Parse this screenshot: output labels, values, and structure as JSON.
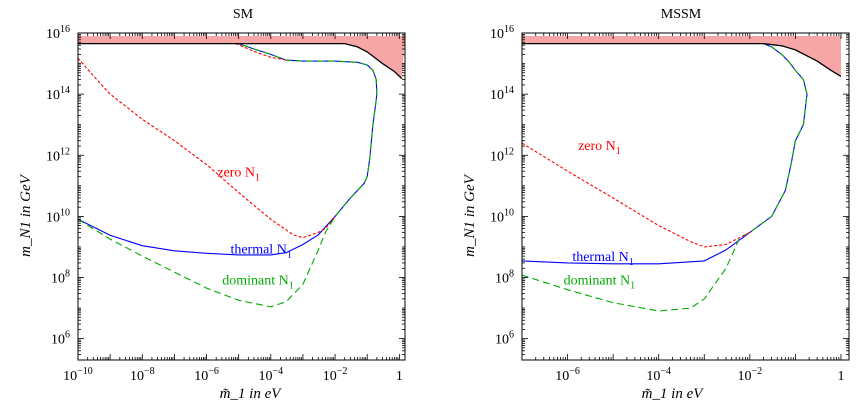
{
  "chart_data": [
    {
      "type": "line",
      "title": "SM",
      "xlabel": "m̃_1 in eV",
      "ylabel": "m_N1 in GeV",
      "xscale": "log",
      "yscale": "log",
      "xlim": [
        1e-10,
        1.5
      ],
      "ylim": [
        200000.0,
        1e+16
      ],
      "x_ticks": [
        {
          "value": 1e-10,
          "base": "10",
          "exp": "−10"
        },
        {
          "value": 1e-08,
          "base": "10",
          "exp": "−8"
        },
        {
          "value": 1e-06,
          "base": "10",
          "exp": "−6"
        },
        {
          "value": 0.0001,
          "base": "10",
          "exp": "−4"
        },
        {
          "value": 0.01,
          "base": "10",
          "exp": "−2"
        },
        {
          "value": 1,
          "base": "1",
          "exp": ""
        }
      ],
      "y_ticks": [
        {
          "value": 1000000.0,
          "base": "10",
          "exp": "6"
        },
        {
          "value": 100000000.0,
          "base": "10",
          "exp": "8"
        },
        {
          "value": 10000000000.0,
          "base": "10",
          "exp": "10"
        },
        {
          "value": 1000000000000.0,
          "base": "10",
          "exp": "12"
        },
        {
          "value": 100000000000000.0,
          "base": "10",
          "exp": "14"
        },
        {
          "value": 1e+16,
          "base": "10",
          "exp": "16"
        }
      ],
      "excluded_region": {
        "color": "#f7a6a8",
        "top": [
          [
            1e-10,
            8000000000000000.0
          ],
          [
            1.5,
            8000000000000000.0
          ]
        ],
        "bottom": [
          [
            1e-10,
            4500000000000000.0
          ],
          [
            0.02,
            4500000000000000.0
          ],
          [
            0.05,
            3500000000000000.0
          ],
          [
            0.1,
            2400000000000000.0
          ],
          [
            0.3,
            1000000000000000.0
          ],
          [
            0.7,
            550000000000000.0
          ],
          [
            1.2,
            320000000000000.0
          ]
        ]
      },
      "boundary_curve": {
        "color": "#000000",
        "points": [
          [
            1e-10,
            4500000000000000.0
          ],
          [
            0.02,
            4500000000000000.0
          ],
          [
            0.05,
            3500000000000000.0
          ],
          [
            0.1,
            2400000000000000.0
          ],
          [
            0.3,
            1000000000000000.0
          ],
          [
            0.7,
            550000000000000.0
          ],
          [
            1.2,
            320000000000000.0
          ]
        ]
      },
      "series": [
        {
          "name": "thermal N1",
          "color": "#0000ff",
          "dash": "solid",
          "points": [
            [
              1e-10,
              8000000000.0
            ],
            [
              1e-09,
              2400000000.0
            ],
            [
              1e-08,
              1100000000.0
            ],
            [
              1e-07,
              750000000.0
            ],
            [
              1e-06,
              620000000.0
            ],
            [
              1e-05,
              550000000.0
            ],
            [
              0.0001,
              550000000.0
            ],
            [
              0.0003,
              650000000.0
            ],
            [
              0.001,
              1200000000.0
            ],
            [
              0.003,
              2500000000.0
            ],
            [
              0.01,
              10000000000.0
            ],
            [
              0.03,
              40000000000.0
            ],
            [
              0.08,
              120000000000.0
            ],
            [
              0.1,
              200000000000.0
            ],
            [
              0.12,
              800000000000.0
            ],
            [
              0.15,
              10000000000000.0
            ],
            [
              0.18,
              40000000000000.0
            ],
            [
              0.2,
              100000000000000.0
            ],
            [
              0.19,
              300000000000000.0
            ],
            [
              0.15,
              600000000000000.0
            ],
            [
              0.1,
              900000000000000.0
            ],
            [
              0.05,
              1100000000000000.0
            ],
            [
              0.01,
              1200000000000000.0
            ],
            [
              0.001,
              1200000000000000.0
            ],
            [
              0.0003,
              1300000000000000.0
            ],
            [
              0.0001,
              2000000000000000.0
            ],
            [
              3e-05,
              3000000000000000.0
            ],
            [
              1e-05,
              4500000000000000.0
            ]
          ]
        },
        {
          "name": "dominant N1",
          "color": "#00aa00",
          "dash": "dashed",
          "points": [
            [
              1e-10,
              8000000000.0
            ],
            [
              1e-09,
              1800000000.0
            ],
            [
              1e-08,
              500000000.0
            ],
            [
              1e-07,
              150000000.0
            ],
            [
              1e-06,
              45000000.0
            ],
            [
              1e-05,
              18000000.0
            ],
            [
              0.0001,
              11000000.0
            ],
            [
              0.0003,
              16000000.0
            ],
            [
              0.001,
              60000000.0
            ],
            [
              0.003,
              800000000.0
            ],
            [
              0.005,
              3000000000.0
            ],
            [
              0.01,
              10000000000.0
            ],
            [
              0.03,
              40000000000.0
            ],
            [
              0.08,
              120000000000.0
            ],
            [
              0.1,
              200000000000.0
            ],
            [
              0.12,
              800000000000.0
            ],
            [
              0.15,
              10000000000000.0
            ],
            [
              0.18,
              40000000000000.0
            ],
            [
              0.2,
              100000000000000.0
            ],
            [
              0.19,
              300000000000000.0
            ],
            [
              0.15,
              600000000000000.0
            ],
            [
              0.1,
              900000000000000.0
            ],
            [
              0.05,
              1100000000000000.0
            ],
            [
              0.01,
              1200000000000000.0
            ],
            [
              0.001,
              1200000000000000.0
            ],
            [
              0.0003,
              1300000000000000.0
            ],
            [
              0.0001,
              2000000000000000.0
            ],
            [
              3e-05,
              3000000000000000.0
            ],
            [
              1e-05,
              4500000000000000.0
            ]
          ]
        },
        {
          "name": "zero N1",
          "color": "#ff0000",
          "dash": "dotted",
          "points": [
            [
              1e-10,
              1500000000000000.0
            ],
            [
              3e-10,
              400000000000000.0
            ],
            [
              1e-09,
              100000000000000.0
            ],
            [
              1e-08,
              15000000000000.0
            ],
            [
              1e-07,
              3000000000000.0
            ],
            [
              1e-06,
              500000000000.0
            ],
            [
              1e-05,
              60000000000.0
            ],
            [
              0.0001,
              8000000000.0
            ],
            [
              0.0005,
              2500000000.0
            ],
            [
              0.001,
              2000000000.0
            ],
            [
              0.003,
              3000000000.0
            ],
            [
              0.005,
              4000000000.0
            ],
            [
              0.01,
              10000000000.0
            ]
          ]
        },
        {
          "name": "zero N1 upper",
          "color": "#ff0000",
          "dash": "dotted",
          "points": [
            [
              8e-06,
              4500000000000000.0
            ],
            [
              3e-05,
              2500000000000000.0
            ],
            [
              0.0001,
              1600000000000000.0
            ],
            [
              0.0003,
              1300000000000000.0
            ]
          ]
        }
      ],
      "annotations": [
        {
          "text": "zero N",
          "sub": "1",
          "color": "#ff0000",
          "at": [
            1e-05,
            200000000000.0
          ]
        },
        {
          "text": "thermal N",
          "sub": "1",
          "color": "#0000ff",
          "at": [
            5e-05,
            600000000.0
          ]
        },
        {
          "text": "dominant N",
          "sub": "1",
          "color": "#00aa00",
          "at": [
            4e-05,
            60000000.0
          ]
        }
      ]
    },
    {
      "type": "line",
      "title": "MSSM",
      "xlabel": "m̃_1 in eV",
      "ylabel": "m_N1 in GeV",
      "xscale": "log",
      "yscale": "log",
      "xlim": [
        1e-07,
        1.5
      ],
      "ylim": [
        200000.0,
        1e+16
      ],
      "x_ticks": [
        {
          "value": 1e-06,
          "base": "10",
          "exp": "−6"
        },
        {
          "value": 0.0001,
          "base": "10",
          "exp": "−4"
        },
        {
          "value": 0.01,
          "base": "10",
          "exp": "−2"
        },
        {
          "value": 1,
          "base": "1",
          "exp": ""
        }
      ],
      "y_ticks": [
        {
          "value": 1000000.0,
          "base": "10",
          "exp": "6"
        },
        {
          "value": 100000000.0,
          "base": "10",
          "exp": "8"
        },
        {
          "value": 10000000000.0,
          "base": "10",
          "exp": "10"
        },
        {
          "value": 1000000000000.0,
          "base": "10",
          "exp": "12"
        },
        {
          "value": 100000000000000.0,
          "base": "10",
          "exp": "14"
        },
        {
          "value": 1e+16,
          "base": "10",
          "exp": "16"
        }
      ],
      "excluded_region": {
        "color": "#f7a6a8",
        "top": [
          [
            1e-07,
            8000000000000000.0
          ],
          [
            1,
            8000000000000000.0
          ]
        ],
        "bottom": [
          [
            1e-07,
            4500000000000000.0
          ],
          [
            0.02,
            4500000000000000.0
          ],
          [
            0.05,
            3800000000000000.0
          ],
          [
            0.1,
            2800000000000000.0
          ],
          [
            0.3,
            1200000000000000.0
          ],
          [
            0.6,
            600000000000000.0
          ],
          [
            1,
            380000000000000.0
          ]
        ]
      },
      "boundary_curve": {
        "color": "#000000",
        "points": [
          [
            1e-07,
            4500000000000000.0
          ],
          [
            0.02,
            4500000000000000.0
          ],
          [
            0.05,
            3800000000000000.0
          ],
          [
            0.1,
            2800000000000000.0
          ],
          [
            0.3,
            1200000000000000.0
          ],
          [
            0.6,
            600000000000000.0
          ],
          [
            1,
            380000000000000.0
          ]
        ]
      },
      "series": [
        {
          "name": "thermal N1",
          "color": "#0000ff",
          "dash": "solid",
          "points": [
            [
              1e-07,
              350000000.0
            ],
            [
              1e-06,
              300000000.0
            ],
            [
              1e-05,
              280000000.0
            ],
            [
              0.0001,
              280000000.0
            ],
            [
              0.001,
              350000000.0
            ],
            [
              0.003,
              800000000.0
            ],
            [
              0.01,
              3000000000.0
            ],
            [
              0.03,
              10000000000.0
            ],
            [
              0.06,
              70000000000.0
            ],
            [
              0.08,
              500000000000.0
            ],
            [
              0.1,
              3000000000000.0
            ],
            [
              0.15,
              10000000000000.0
            ],
            [
              0.18,
              100000000000000.0
            ],
            [
              0.15,
              300000000000000.0
            ],
            [
              0.1,
              600000000000000.0
            ],
            [
              0.07,
              1200000000000000.0
            ],
            [
              0.05,
              2000000000000000.0
            ],
            [
              0.03,
              3500000000000000.0
            ],
            [
              0.02,
              4500000000000000.0
            ]
          ]
        },
        {
          "name": "dominant N1",
          "color": "#00aa00",
          "dash": "dashed",
          "points": [
            [
              1e-07,
              120000000.0
            ],
            [
              1e-06,
              40000000.0
            ],
            [
              1e-05,
              15000000.0
            ],
            [
              0.0001,
              8000000.0
            ],
            [
              0.0005,
              10000000.0
            ],
            [
              0.001,
              20000000.0
            ],
            [
              0.003,
              200000000.0
            ],
            [
              0.006,
              2000000000.0
            ],
            [
              0.01,
              3000000000.0
            ],
            [
              0.03,
              10000000000.0
            ],
            [
              0.06,
              70000000000.0
            ],
            [
              0.08,
              500000000000.0
            ],
            [
              0.1,
              3000000000000.0
            ],
            [
              0.15,
              10000000000000.0
            ],
            [
              0.18,
              100000000000000.0
            ],
            [
              0.15,
              300000000000000.0
            ],
            [
              0.1,
              600000000000000.0
            ],
            [
              0.07,
              1200000000000000.0
            ],
            [
              0.05,
              2000000000000000.0
            ],
            [
              0.03,
              3500000000000000.0
            ],
            [
              0.02,
              4500000000000000.0
            ]
          ]
        },
        {
          "name": "zero N1",
          "color": "#ff0000",
          "dash": "dotted",
          "points": [
            [
              1e-07,
              2500000000000.0
            ],
            [
              1e-06,
              300000000000.0
            ],
            [
              1e-05,
              40000000000.0
            ],
            [
              0.0001,
              5000000000.0
            ],
            [
              0.0005,
              1500000000.0
            ],
            [
              0.001,
              1000000000.0
            ],
            [
              0.003,
              1200000000.0
            ],
            [
              0.01,
              3000000000.0
            ]
          ]
        }
      ],
      "annotations": [
        {
          "text": "zero N",
          "sub": "1",
          "color": "#ff0000",
          "at": [
            5e-06,
            1500000000000.0
          ]
        },
        {
          "text": "thermal N",
          "sub": "1",
          "color": "#0000ff",
          "at": [
            6e-06,
            350000000.0
          ]
        },
        {
          "text": "dominant N",
          "sub": "1",
          "color": "#00aa00",
          "at": [
            5e-06,
            60000000.0
          ]
        }
      ]
    }
  ]
}
